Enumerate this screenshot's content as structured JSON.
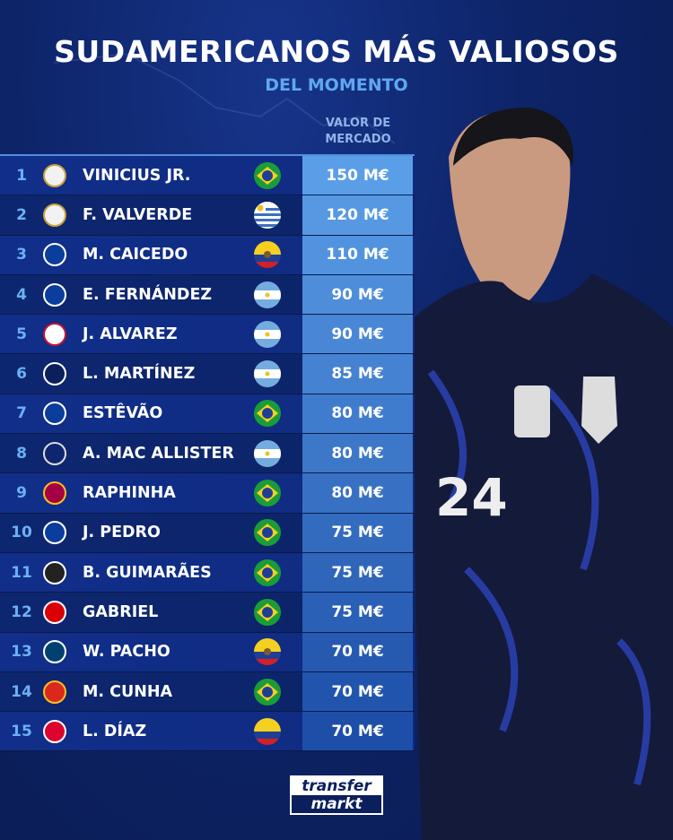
{
  "title": "SUDAMERICANOS MÁS VALIOSOS",
  "subtitle": "DEL MOMENTO",
  "column_header": "VALOR DE MERCADO",
  "jersey_number": "24",
  "brand": "transfermarkt",
  "brand_line1": "transfer",
  "brand_line2": "markt",
  "rows": [
    {
      "rank": "1",
      "club": "Real Madrid",
      "name": "VINICIUS JR.",
      "country": "Brazil",
      "value": "150 M€"
    },
    {
      "rank": "2",
      "club": "Real Madrid",
      "name": "F. VALVERDE",
      "country": "Uruguay",
      "value": "120 M€"
    },
    {
      "rank": "3",
      "club": "Chelsea",
      "name": "M. CAICEDO",
      "country": "Ecuador",
      "value": "110 M€"
    },
    {
      "rank": "4",
      "club": "Chelsea",
      "name": "E. FERNÁNDEZ",
      "country": "Argentina",
      "value": "90 M€"
    },
    {
      "rank": "5",
      "club": "Atlético Madrid",
      "name": "J. ALVAREZ",
      "country": "Argentina",
      "value": "90 M€"
    },
    {
      "rank": "6",
      "club": "Inter",
      "name": "L. MARTÍNEZ",
      "country": "Argentina",
      "value": "85 M€"
    },
    {
      "rank": "7",
      "club": "Chelsea",
      "name": "ESTÊVÃO",
      "country": "Brazil",
      "value": "80 M€"
    },
    {
      "rank": "8",
      "club": "Liverpool",
      "name": "A. MAC ALLISTER",
      "country": "Argentina",
      "value": "80 M€"
    },
    {
      "rank": "9",
      "club": "Barcelona",
      "name": "RAPHINHA",
      "country": "Brazil",
      "value": "80 M€"
    },
    {
      "rank": "10",
      "club": "Chelsea",
      "name": "J. PEDRO",
      "country": "Brazil",
      "value": "75 M€"
    },
    {
      "rank": "11",
      "club": "Newcastle",
      "name": "B. GUIMARÃES",
      "country": "Brazil",
      "value": "75 M€"
    },
    {
      "rank": "12",
      "club": "Arsenal",
      "name": "GABRIEL",
      "country": "Brazil",
      "value": "75 M€"
    },
    {
      "rank": "13",
      "club": "PSG",
      "name": "W. PACHO",
      "country": "Ecuador",
      "value": "70 M€"
    },
    {
      "rank": "14",
      "club": "Manchester United",
      "name": "M. CUNHA",
      "country": "Brazil",
      "value": "70 M€"
    },
    {
      "rank": "15",
      "club": "Bayern",
      "name": "L. DÍAZ",
      "country": "Colombia",
      "value": "70 M€"
    }
  ],
  "colors": {
    "background": "#0b1f5c",
    "accent": "#5fa8f0",
    "value_top": "#5b9ee8",
    "value_bottom": "#1d4fa8"
  }
}
